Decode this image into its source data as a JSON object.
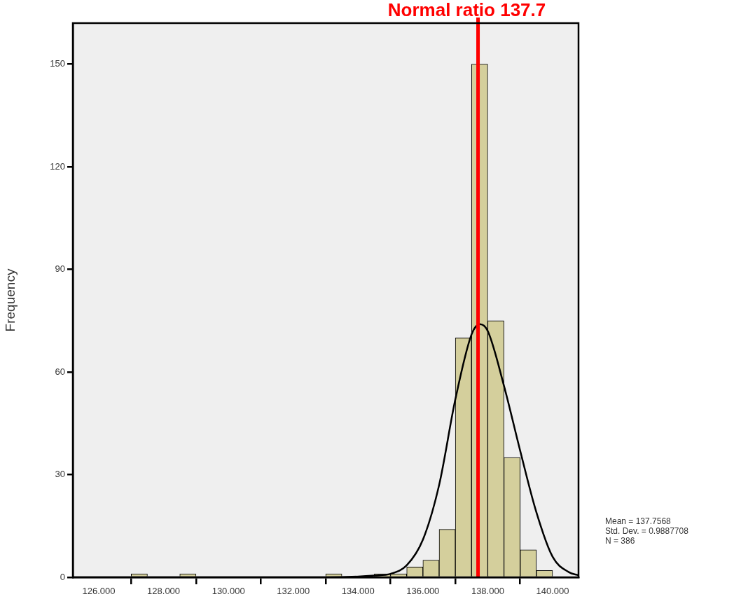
{
  "chart_data": {
    "type": "histogram",
    "ylabel": "Frequency",
    "xlim": [
      125.2,
      140.8
    ],
    "xticks": [
      {
        "value": 126,
        "label": "126.000"
      },
      {
        "value": 128,
        "label": "128.000"
      },
      {
        "value": 130,
        "label": "130.000"
      },
      {
        "value": 132,
        "label": "132.000"
      },
      {
        "value": 134,
        "label": "134.000"
      },
      {
        "value": 136,
        "label": "136.000"
      },
      {
        "value": 138,
        "label": "138.000"
      },
      {
        "value": 140,
        "label": "140.000"
      }
    ],
    "ylim": [
      0,
      162
    ],
    "yticks": [
      0,
      30,
      60,
      90,
      120,
      150
    ],
    "grid": false,
    "legend": false,
    "series": [
      {
        "color": "#d4cf9c",
        "bins": [
          127,
          127.5,
          128,
          128.5,
          129,
          129.5,
          130,
          130.5,
          131,
          131.5,
          132,
          132.5,
          133,
          133.5,
          134,
          134.5,
          135,
          135.5,
          136,
          136.5,
          137,
          137.5,
          138,
          138.5,
          139,
          139.5,
          140
        ],
        "values": [
          1,
          0,
          0,
          1,
          0,
          0,
          0,
          0,
          0,
          0,
          0,
          0,
          1,
          0,
          0,
          1,
          1,
          3,
          5,
          14,
          70,
          150,
          75,
          35,
          8,
          2
        ]
      },
      {
        "type": "line",
        "color": "#000000",
        "x": [
          125.2,
          133.0,
          134.0,
          134.5,
          135.0,
          135.5,
          136.0,
          136.5,
          137.0,
          137.5,
          137.76,
          138.0,
          138.5,
          139.0,
          139.5,
          140.0,
          140.5,
          140.8
        ],
        "values": [
          0,
          0,
          0.2,
          0.5,
          1,
          3.5,
          11,
          27,
          52,
          71,
          74,
          72,
          56,
          37,
          19,
          6,
          1.5,
          0.6
        ]
      }
    ],
    "ref_lines": [
      {
        "axis": "x",
        "value": 137.7,
        "label": "Normal ratio 137.7",
        "color": "#ff0000"
      }
    ],
    "annotations": [
      "Mean = 137.7568",
      "Std. Dev. = 0.9887708",
      "N = 386"
    ]
  }
}
